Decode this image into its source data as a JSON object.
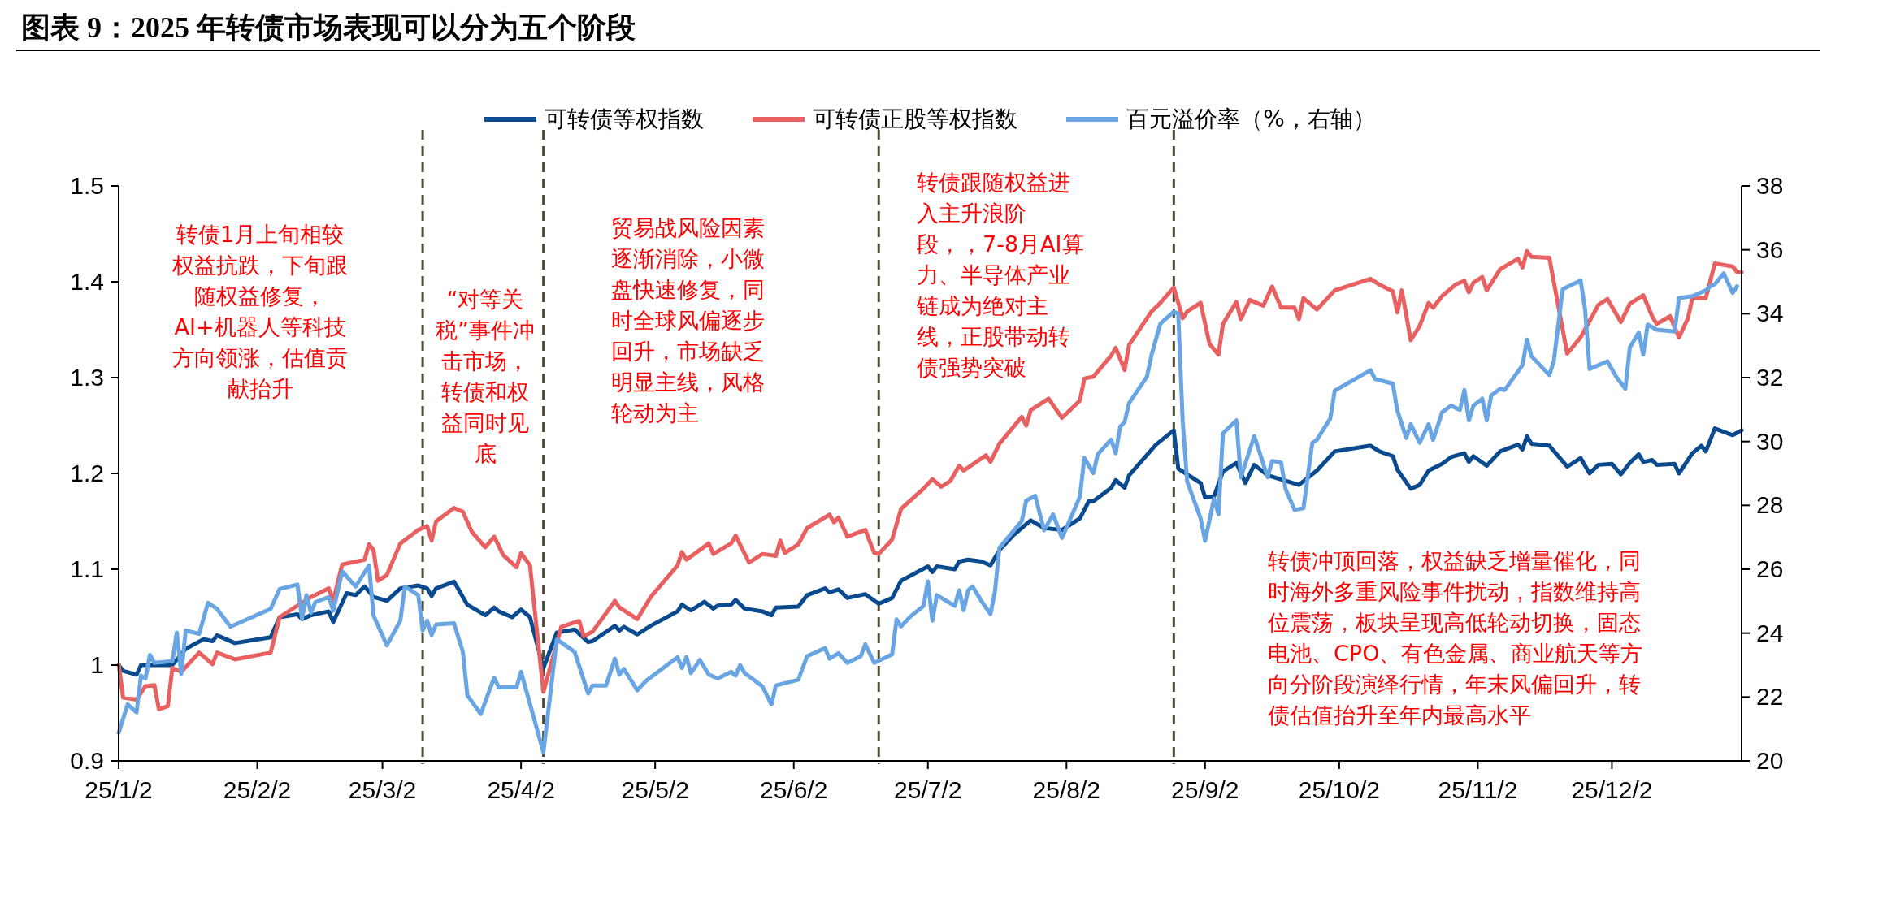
{
  "chart_data": {
    "type": "line",
    "title": "图表 9：2025 年转债市场表现可以分为五个阶段",
    "xlim": [
      "2025-01-02",
      "2025-12-31"
    ],
    "xticks": [
      {
        "value": "2025-01-02",
        "label": "25/1/2"
      },
      {
        "value": "2025-02-02",
        "label": "25/2/2"
      },
      {
        "value": "2025-03-02",
        "label": "25/3/2"
      },
      {
        "value": "2025-04-02",
        "label": "25/4/2"
      },
      {
        "value": "2025-05-02",
        "label": "25/5/2"
      },
      {
        "value": "2025-06-02",
        "label": "25/6/2"
      },
      {
        "value": "2025-07-02",
        "label": "25/7/2"
      },
      {
        "value": "2025-08-02",
        "label": "25/8/2"
      },
      {
        "value": "2025-09-02",
        "label": "25/9/2"
      },
      {
        "value": "2025-10-02",
        "label": "25/10/2"
      },
      {
        "value": "2025-11-02",
        "label": "25/11/2"
      },
      {
        "value": "2025-12-02",
        "label": "25/12/2"
      }
    ],
    "ylim": [
      0.9,
      1.5
    ],
    "yticks": [
      0.9,
      1,
      1.1,
      1.2,
      1.3,
      1.4,
      1.5
    ],
    "y2lim": [
      20,
      38
    ],
    "y2ticks": [
      20,
      22,
      24,
      26,
      28,
      30,
      32,
      34,
      36,
      38
    ],
    "legend": "top",
    "series": [
      {
        "name": "可转债等权指数",
        "color": "#0a4a8f",
        "x": [
          "2025-01-02",
          "2025-01-03",
          "2025-01-06",
          "2025-01-07",
          "2025-01-10",
          "2025-01-14",
          "2025-01-17",
          "2025-01-21",
          "2025-01-23",
          "2025-01-24",
          "2025-01-28",
          "2025-02-05",
          "2025-02-07",
          "2025-02-11",
          "2025-02-12",
          "2025-02-14",
          "2025-02-18",
          "2025-02-19",
          "2025-02-22",
          "2025-02-24",
          "2025-02-26",
          "2025-02-28",
          "2025-03-03",
          "2025-03-06",
          "2025-03-10",
          "2025-03-12",
          "2025-03-13",
          "2025-03-14",
          "2025-03-18",
          "2025-03-21",
          "2025-03-25",
          "2025-03-27",
          "2025-03-28",
          "2025-03-31",
          "2025-04-02",
          "2025-04-04",
          "2025-04-07",
          "2025-04-10",
          "2025-04-14",
          "2025-04-17",
          "2025-04-18",
          "2025-04-23",
          "2025-04-24",
          "2025-04-25",
          "2025-04-28",
          "2025-05-01",
          "2025-05-07",
          "2025-05-08",
          "2025-05-10",
          "2025-05-13",
          "2025-05-15",
          "2025-05-16",
          "2025-05-19",
          "2025-05-20",
          "2025-05-22",
          "2025-05-26",
          "2025-05-28",
          "2025-05-29",
          "2025-06-03",
          "2025-06-05",
          "2025-06-09",
          "2025-06-10",
          "2025-06-12",
          "2025-06-14",
          "2025-06-18",
          "2025-06-21",
          "2025-06-24",
          "2025-06-26",
          "2025-07-02",
          "2025-07-03",
          "2025-07-04",
          "2025-07-08",
          "2025-07-09",
          "2025-07-11",
          "2025-07-14",
          "2025-07-16",
          "2025-07-18",
          "2025-07-21",
          "2025-07-25",
          "2025-07-28",
          "2025-08-01",
          "2025-08-05",
          "2025-08-07",
          "2025-08-08",
          "2025-08-12",
          "2025-08-13",
          "2025-08-15",
          "2025-08-16",
          "2025-08-22",
          "2025-08-26",
          "2025-08-27",
          "2025-09-01",
          "2025-09-02",
          "2025-09-04",
          "2025-09-06",
          "2025-09-09",
          "2025-09-11",
          "2025-09-13",
          "2025-09-16",
          "2025-09-23",
          "2025-09-27",
          "2025-10-01",
          "2025-10-09",
          "2025-10-11",
          "2025-10-14",
          "2025-10-15",
          "2025-10-18",
          "2025-10-20",
          "2025-10-22",
          "2025-10-25",
          "2025-10-27",
          "2025-10-30",
          "2025-10-31",
          "2025-11-01",
          "2025-11-04",
          "2025-11-07",
          "2025-11-11",
          "2025-11-12",
          "2025-11-13",
          "2025-11-14",
          "2025-11-18",
          "2025-11-22",
          "2025-11-25",
          "2025-11-27",
          "2025-11-29",
          "2025-12-02",
          "2025-12-04",
          "2025-12-06",
          "2025-12-08",
          "2025-12-09",
          "2025-12-11",
          "2025-12-12",
          "2025-12-16",
          "2025-12-17",
          "2025-12-20",
          "2025-12-22",
          "2025-12-23",
          "2025-12-25",
          "2025-12-29",
          "2025-12-31"
        ],
        "values": [
          1.0,
          0.994,
          0.99,
          1.0,
          1.0,
          1.0,
          1.017,
          1.027,
          1.025,
          1.031,
          1.023,
          1.029,
          1.05,
          1.053,
          1.048,
          1.052,
          1.056,
          1.045,
          1.075,
          1.073,
          1.082,
          1.071,
          1.067,
          1.08,
          1.083,
          1.08,
          1.072,
          1.08,
          1.087,
          1.063,
          1.052,
          1.06,
          1.056,
          1.05,
          1.058,
          1.05,
          0.997,
          1.034,
          1.037,
          1.024,
          1.025,
          1.041,
          1.036,
          1.04,
          1.032,
          1.041,
          1.056,
          1.063,
          1.057,
          1.066,
          1.059,
          1.062,
          1.063,
          1.068,
          1.059,
          1.056,
          1.052,
          1.06,
          1.061,
          1.073,
          1.08,
          1.076,
          1.079,
          1.07,
          1.074,
          1.064,
          1.07,
          1.088,
          1.103,
          1.097,
          1.103,
          1.1,
          1.108,
          1.11,
          1.108,
          1.104,
          1.12,
          1.135,
          1.151,
          1.143,
          1.141,
          1.153,
          1.171,
          1.171,
          1.185,
          1.193,
          1.185,
          1.198,
          1.23,
          1.245,
          1.205,
          1.19,
          1.175,
          1.176,
          1.202,
          1.211,
          1.19,
          1.209,
          1.198,
          1.188,
          1.203,
          1.223,
          1.229,
          1.223,
          1.218,
          1.204,
          1.184,
          1.188,
          1.203,
          1.21,
          1.217,
          1.221,
          1.212,
          1.218,
          1.208,
          1.223,
          1.23,
          1.225,
          1.239,
          1.231,
          1.229,
          1.207,
          1.216,
          1.2,
          1.209,
          1.21,
          1.199,
          1.211,
          1.22,
          1.212,
          1.214,
          1.209,
          1.21,
          1.2,
          1.221,
          1.229,
          1.223,
          1.247,
          1.24,
          1.245
        ]
      },
      {
        "name": "可转债正股等权指数",
        "color": "#e8605f",
        "x": [
          "2025-01-02",
          "2025-01-03",
          "2025-01-06",
          "2025-01-08",
          "2025-01-10",
          "2025-01-11",
          "2025-01-13",
          "2025-01-14",
          "2025-01-16",
          "2025-01-20",
          "2025-01-23",
          "2025-01-24",
          "2025-01-28",
          "2025-02-05",
          "2025-02-07",
          "2025-02-14",
          "2025-02-18",
          "2025-02-19",
          "2025-02-21",
          "2025-02-26",
          "2025-02-27",
          "2025-02-28",
          "2025-03-01",
          "2025-03-03",
          "2025-03-06",
          "2025-03-10",
          "2025-03-12",
          "2025-03-13",
          "2025-03-14",
          "2025-03-18",
          "2025-03-20",
          "2025-03-22",
          "2025-03-25",
          "2025-03-27",
          "2025-03-29",
          "2025-04-01",
          "2025-04-02",
          "2025-04-04",
          "2025-04-07",
          "2025-04-11",
          "2025-04-15",
          "2025-04-16",
          "2025-04-18",
          "2025-04-21",
          "2025-04-23",
          "2025-04-24",
          "2025-04-28",
          "2025-05-01",
          "2025-05-07",
          "2025-05-08",
          "2025-05-09",
          "2025-05-14",
          "2025-05-15",
          "2025-05-19",
          "2025-05-20",
          "2025-05-23",
          "2025-05-26",
          "2025-05-29",
          "2025-05-30",
          "2025-05-31",
          "2025-06-03",
          "2025-06-05",
          "2025-06-10",
          "2025-06-11",
          "2025-06-12",
          "2025-06-14",
          "2025-06-18",
          "2025-06-20",
          "2025-06-21",
          "2025-06-24",
          "2025-06-26",
          "2025-07-01",
          "2025-07-03",
          "2025-07-05",
          "2025-07-07",
          "2025-07-09",
          "2025-07-10",
          "2025-07-15",
          "2025-07-16",
          "2025-07-18",
          "2025-07-23",
          "2025-07-24",
          "2025-07-25",
          "2025-07-29",
          "2025-08-01",
          "2025-08-05",
          "2025-08-06",
          "2025-08-08",
          "2025-08-12",
          "2025-08-13",
          "2025-08-15",
          "2025-08-16",
          "2025-08-21",
          "2025-08-23",
          "2025-08-26",
          "2025-08-28",
          "2025-08-29",
          "2025-09-01",
          "2025-09-03",
          "2025-09-05",
          "2025-09-06",
          "2025-09-09",
          "2025-09-10",
          "2025-09-12",
          "2025-09-15",
          "2025-09-17",
          "2025-09-19",
          "2025-09-22",
          "2025-09-23",
          "2025-09-24",
          "2025-09-27",
          "2025-10-01",
          "2025-10-09",
          "2025-10-11",
          "2025-10-14",
          "2025-10-15",
          "2025-10-16",
          "2025-10-18",
          "2025-10-20",
          "2025-10-22",
          "2025-10-23",
          "2025-10-25",
          "2025-10-28",
          "2025-10-30",
          "2025-10-31",
          "2025-11-01",
          "2025-11-03",
          "2025-11-04",
          "2025-11-07",
          "2025-11-11",
          "2025-11-12",
          "2025-11-13",
          "2025-11-14",
          "2025-11-18",
          "2025-11-22",
          "2025-11-25",
          "2025-11-29",
          "2025-12-01",
          "2025-12-04",
          "2025-12-06",
          "2025-12-09",
          "2025-12-11",
          "2025-12-12",
          "2025-12-15",
          "2025-12-17",
          "2025-12-19",
          "2025-12-20",
          "2025-12-23",
          "2025-12-25",
          "2025-12-29",
          "2025-12-30",
          "2025-12-31"
        ],
        "values": [
          1.001,
          0.966,
          0.964,
          0.978,
          0.979,
          0.954,
          0.957,
          0.997,
          0.993,
          1.013,
          1.001,
          1.013,
          1.006,
          1.013,
          1.05,
          1.071,
          1.08,
          1.067,
          1.105,
          1.11,
          1.126,
          1.12,
          1.088,
          1.094,
          1.127,
          1.141,
          1.145,
          1.13,
          1.15,
          1.164,
          1.16,
          1.139,
          1.123,
          1.134,
          1.115,
          1.102,
          1.117,
          1.104,
          0.972,
          1.04,
          1.046,
          1.03,
          1.035,
          1.054,
          1.067,
          1.06,
          1.048,
          1.071,
          1.104,
          1.118,
          1.11,
          1.127,
          1.116,
          1.127,
          1.135,
          1.107,
          1.116,
          1.114,
          1.13,
          1.117,
          1.126,
          1.143,
          1.157,
          1.149,
          1.154,
          1.134,
          1.141,
          1.117,
          1.116,
          1.131,
          1.163,
          1.184,
          1.194,
          1.186,
          1.192,
          1.208,
          1.203,
          1.219,
          1.212,
          1.231,
          1.259,
          1.25,
          1.266,
          1.278,
          1.258,
          1.276,
          1.299,
          1.301,
          1.323,
          1.331,
          1.308,
          1.334,
          1.369,
          1.378,
          1.394,
          1.362,
          1.369,
          1.378,
          1.335,
          1.324,
          1.356,
          1.379,
          1.361,
          1.381,
          1.375,
          1.395,
          1.373,
          1.373,
          1.361,
          1.383,
          1.371,
          1.391,
          1.403,
          1.397,
          1.39,
          1.368,
          1.391,
          1.339,
          1.354,
          1.378,
          1.373,
          1.385,
          1.397,
          1.401,
          1.389,
          1.399,
          1.405,
          1.391,
          1.413,
          1.424,
          1.415,
          1.432,
          1.426,
          1.425,
          1.325,
          1.342,
          1.376,
          1.382,
          1.358,
          1.377,
          1.386,
          1.364,
          1.356,
          1.364,
          1.342,
          1.362,
          1.383,
          1.383,
          1.419,
          1.416,
          1.41,
          1.41
        ]
      },
      {
        "name": "百元溢价率（%，右轴）",
        "color": "#6aa5e3",
        "axis": "y2",
        "x": [
          "2025-01-02",
          "2025-01-04",
          "2025-01-06",
          "2025-01-07",
          "2025-01-08",
          "2025-01-09",
          "2025-01-10",
          "2025-01-14",
          "2025-01-15",
          "2025-01-16",
          "2025-01-17",
          "2025-01-20",
          "2025-01-22",
          "2025-01-24",
          "2025-01-27",
          "2025-02-05",
          "2025-02-07",
          "2025-02-11",
          "2025-02-12",
          "2025-02-13",
          "2025-02-14",
          "2025-02-15",
          "2025-02-18",
          "2025-02-19",
          "2025-02-21",
          "2025-02-24",
          "2025-02-27",
          "2025-02-28",
          "2025-03-03",
          "2025-03-06",
          "2025-03-07",
          "2025-03-10",
          "2025-03-11",
          "2025-03-12",
          "2025-03-13",
          "2025-03-14",
          "2025-03-18",
          "2025-03-20",
          "2025-03-21",
          "2025-03-24",
          "2025-03-27",
          "2025-03-28",
          "2025-04-01",
          "2025-04-02",
          "2025-04-07",
          "2025-04-10",
          "2025-04-14",
          "2025-04-17",
          "2025-04-18",
          "2025-04-21",
          "2025-04-23",
          "2025-04-24",
          "2025-04-25",
          "2025-04-28",
          "2025-04-30",
          "2025-05-07",
          "2025-05-08",
          "2025-05-09",
          "2025-05-10",
          "2025-05-12",
          "2025-05-14",
          "2025-05-16",
          "2025-05-19",
          "2025-05-20",
          "2025-05-21",
          "2025-05-22",
          "2025-05-26",
          "2025-05-28",
          "2025-05-29",
          "2025-06-03",
          "2025-06-05",
          "2025-06-09",
          "2025-06-10",
          "2025-06-12",
          "2025-06-14",
          "2025-06-17",
          "2025-06-18",
          "2025-06-20",
          "2025-06-24",
          "2025-06-25",
          "2025-06-26",
          "2025-06-28",
          "2025-07-01",
          "2025-07-02",
          "2025-07-03",
          "2025-07-04",
          "2025-07-08",
          "2025-07-09",
          "2025-07-10",
          "2025-07-11",
          "2025-07-12",
          "2025-07-14",
          "2025-07-16",
          "2025-07-17",
          "2025-07-18",
          "2025-07-23",
          "2025-07-24",
          "2025-07-26",
          "2025-07-28",
          "2025-07-30",
          "2025-08-01",
          "2025-08-05",
          "2025-08-06",
          "2025-08-08",
          "2025-08-09",
          "2025-08-12",
          "2025-08-13",
          "2025-08-14",
          "2025-08-15",
          "2025-08-16",
          "2025-08-20",
          "2025-08-21",
          "2025-08-23",
          "2025-08-26",
          "2025-08-27",
          "2025-08-28",
          "2025-08-29",
          "2025-09-01",
          "2025-09-02",
          "2025-09-04",
          "2025-09-05",
          "2025-09-06",
          "2025-09-09",
          "2025-09-10",
          "2025-09-13",
          "2025-09-16",
          "2025-09-17",
          "2025-09-19",
          "2025-09-20",
          "2025-09-22",
          "2025-09-24",
          "2025-09-26",
          "2025-09-27",
          "2025-09-30",
          "2025-10-01",
          "2025-10-09",
          "2025-10-10",
          "2025-10-14",
          "2025-10-15",
          "2025-10-17",
          "2025-10-18",
          "2025-10-20",
          "2025-10-22",
          "2025-10-23",
          "2025-10-25",
          "2025-10-27",
          "2025-10-29",
          "2025-10-30",
          "2025-10-31",
          "2025-11-01",
          "2025-11-03",
          "2025-11-04",
          "2025-11-05",
          "2025-11-07",
          "2025-11-08",
          "2025-11-12",
          "2025-11-13",
          "2025-11-14",
          "2025-11-18",
          "2025-11-19",
          "2025-11-20",
          "2025-11-21",
          "2025-11-25",
          "2025-11-26",
          "2025-11-27",
          "2025-12-01",
          "2025-12-03",
          "2025-12-05",
          "2025-12-06",
          "2025-12-08",
          "2025-12-09",
          "2025-12-10",
          "2025-12-12",
          "2025-12-16",
          "2025-12-17",
          "2025-12-20",
          "2025-12-23",
          "2025-12-24",
          "2025-12-25",
          "2025-12-27",
          "2025-12-29",
          "2025-12-30"
        ],
        "values": [
          20.88,
          21.77,
          21.52,
          22.67,
          22.58,
          23.32,
          23.07,
          23.12,
          24.02,
          22.73,
          24.08,
          23.98,
          24.95,
          24.76,
          24.2,
          24.76,
          25.38,
          25.52,
          24.45,
          25.19,
          24.64,
          24.97,
          25.13,
          24.7,
          25.93,
          25.46,
          26.12,
          24.55,
          23.62,
          24.39,
          25.46,
          25.19,
          24.08,
          24.39,
          23.94,
          24.27,
          24.31,
          23.41,
          22.05,
          21.47,
          22.61,
          22.3,
          22.3,
          22.79,
          20.27,
          23.81,
          23.41,
          22.11,
          22.36,
          22.36,
          23.2,
          22.7,
          22.88,
          22.21,
          22.51,
          23.25,
          22.91,
          23.25,
          22.75,
          23.16,
          22.7,
          22.58,
          22.79,
          22.67,
          23,
          22.75,
          22.33,
          21.77,
          22.36,
          22.54,
          23.28,
          23.53,
          23.2,
          23.37,
          23.07,
          23.28,
          23.65,
          23.07,
          23.34,
          24.43,
          24.21,
          24.51,
          24.85,
          25.62,
          24.39,
          25.19,
          24.85,
          25.34,
          24.72,
          25.34,
          25.46,
          25,
          24.6,
          25.31,
          26.67,
          27.51,
          28.15,
          28.3,
          27.22,
          27.72,
          26.98,
          28.27,
          29.48,
          29.01,
          29.6,
          30.06,
          29.63,
          30.46,
          30.61,
          31.2,
          32.03,
          32.7,
          33.69,
          34.06,
          34,
          30.61,
          28.74,
          27.59,
          26.89,
          28.21,
          27.72,
          30.26,
          30.66,
          28.88,
          30.17,
          28.88,
          29.39,
          29.34,
          28.51,
          27.86,
          27.91,
          29.96,
          30.05,
          30.72,
          31.59,
          32.23,
          31.96,
          31.81,
          30.97,
          30.11,
          30.54,
          29.96,
          30.54,
          30.05,
          30.91,
          31.12,
          30.99,
          31.61,
          30.66,
          31.12,
          31.34,
          30.66,
          31.44,
          31.65,
          31.61,
          32.39,
          33.19,
          32.67,
          32.08,
          32.51,
          33.66,
          34.77,
          35.04,
          34.12,
          32.27,
          32.51,
          32.02,
          31.65,
          32.94,
          33.41,
          32.72,
          33.66,
          33.5,
          33.44,
          34.49,
          34.55,
          34.73,
          34.86,
          34.92,
          35.26,
          34.65,
          34.86
        ]
      }
    ],
    "ref_lines": [
      {
        "axis": "x",
        "value": "2025-03-11",
        "color": "#4d4a33",
        "line_style": "dashed"
      },
      {
        "axis": "x",
        "value": "2025-04-07",
        "color": "#4d4a33",
        "line_style": "dashed"
      },
      {
        "axis": "x",
        "value": "2025-06-21",
        "color": "#4d4a33",
        "line_style": "dashed"
      },
      {
        "axis": "x",
        "value": "2025-08-26",
        "color": "#4d4a33",
        "line_style": "dashed"
      }
    ],
    "annotations": [
      "转债1月上旬相较权益抗跌，下旬跟随权益修复，AI+机器人等科技方向领涨，估值贡献抬升",
      "“对等关税”事件冲击市场，转债和权益同时见底",
      "贸易战风险因素逐渐消除，小微盘快速修复，同时全球风偏逐步回升，市场缺乏明显主线，风格轮动为主",
      "转债跟随权益进入主升浪阶段，，7-8月AI算力、半导体产业链成为绝对主线，正股带动转债强势突破",
      "转债冲顶回落，权益缺乏增量催化，同时海外多重风险事件扰动，指数维持高位震荡，板块呈现高低轮动切换，固态电池、CPO、有色金属、商业航天等方向分阶段演绎行情，年末风偏回升，转债估值抬升至年内最高水平"
    ]
  }
}
